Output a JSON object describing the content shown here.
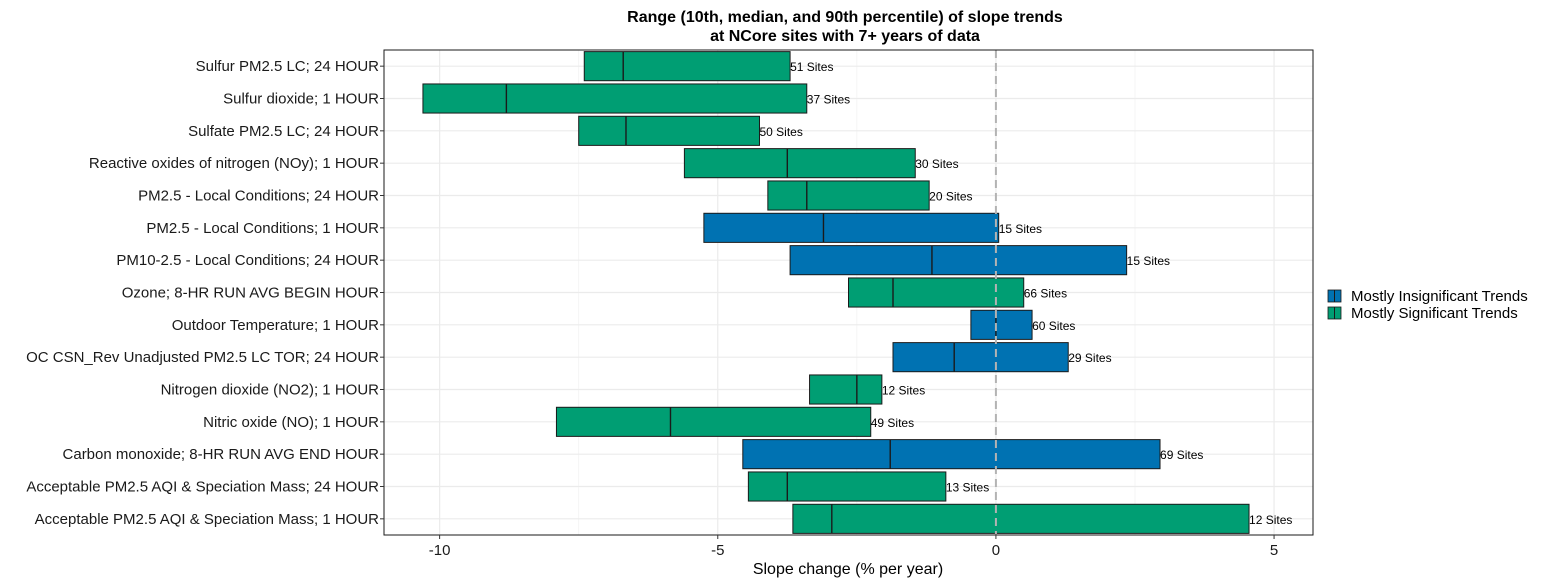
{
  "chart_data": {
    "type": "bar",
    "title": "Range (10th, median, and 90th percentile) of slope trends",
    "subtitle": "at NCore sites with 7+ years of data",
    "xlabel": "Slope change (% per year)",
    "ylabel": "",
    "xlim": [
      -11,
      5.7
    ],
    "xticks": [
      -10,
      -5,
      0,
      5
    ],
    "xtick_labels": [
      "-10",
      "-5",
      "0",
      "5"
    ],
    "reference_line_x": 0,
    "grid": true,
    "legend_position": "right",
    "colors": {
      "Mostly Insignificant Trends": "#0072B2",
      "Mostly Significant Trends": "#009E73"
    },
    "legend": [
      "Mostly Insignificant Trends",
      "Mostly Significant Trends"
    ],
    "categories": [
      "Sulfur PM2.5 LC; 24 HOUR",
      "Sulfur dioxide; 1 HOUR",
      "Sulfate PM2.5 LC; 24 HOUR",
      "Reactive oxides of nitrogen (NOy); 1 HOUR",
      "PM2.5 - Local Conditions; 24 HOUR",
      "PM2.5 - Local Conditions; 1 HOUR",
      "PM10-2.5 - Local Conditions; 24 HOUR",
      "Ozone; 8-HR RUN AVG BEGIN HOUR",
      "Outdoor Temperature; 1 HOUR",
      "OC CSN_Rev Unadjusted PM2.5 LC TOR; 24 HOUR",
      "Nitrogen dioxide (NO2); 1 HOUR",
      "Nitric oxide (NO); 1 HOUR",
      "Carbon monoxide; 8-HR RUN AVG END HOUR",
      "Acceptable PM2.5 AQI & Speciation Mass; 24 HOUR",
      "Acceptable PM2.5 AQI & Speciation Mass; 1 HOUR"
    ],
    "p10": [
      -7.4,
      -10.3,
      -7.5,
      -5.6,
      -4.1,
      -5.25,
      -3.7,
      -2.65,
      -0.45,
      -1.85,
      -3.35,
      -7.9,
      -4.55,
      -4.45,
      -3.65
    ],
    "median": [
      -6.7,
      -8.8,
      -6.65,
      -3.75,
      -3.4,
      -3.1,
      -1.15,
      -1.85,
      0.0,
      -0.75,
      -2.5,
      -5.85,
      -1.9,
      -3.75,
      -2.95
    ],
    "p90": [
      -3.7,
      -3.4,
      -4.25,
      -1.45,
      -1.2,
      0.05,
      2.35,
      0.5,
      0.65,
      1.3,
      -2.05,
      -2.25,
      2.95,
      -0.9,
      4.55
    ],
    "group": [
      "Mostly Significant Trends",
      "Mostly Significant Trends",
      "Mostly Significant Trends",
      "Mostly Significant Trends",
      "Mostly Significant Trends",
      "Mostly Insignificant Trends",
      "Mostly Insignificant Trends",
      "Mostly Significant Trends",
      "Mostly Insignificant Trends",
      "Mostly Insignificant Trends",
      "Mostly Significant Trends",
      "Mostly Significant Trends",
      "Mostly Insignificant Trends",
      "Mostly Significant Trends",
      "Mostly Significant Trends"
    ],
    "site_labels": [
      "51 Sites",
      "37 Sites",
      "50 Sites",
      "30 Sites",
      "20 Sites",
      "15 Sites",
      "15 Sites",
      "66 Sites",
      "60 Sites",
      "29 Sites",
      "12 Sites",
      "49 Sites",
      "69 Sites",
      "13 Sites",
      "12 Sites"
    ]
  }
}
